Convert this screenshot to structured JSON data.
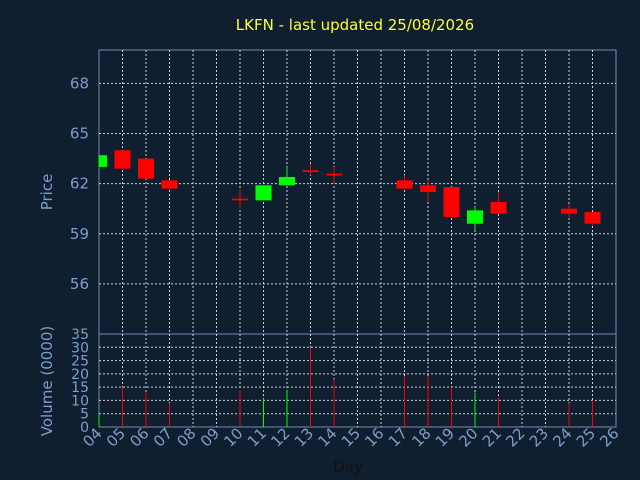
{
  "chart_data": {
    "type": "candlestick",
    "title": "LKFN - last updated 25/08/2026",
    "xlabel": "Day",
    "ylabel_price": "Price",
    "ylabel_volume": "Volume (0000)",
    "x_ticks": [
      "04",
      "05",
      "06",
      "07",
      "08",
      "09",
      "10",
      "11",
      "12",
      "13",
      "14",
      "15",
      "16",
      "17",
      "18",
      "19",
      "20",
      "21",
      "22",
      "23",
      "24",
      "25",
      "26"
    ],
    "price_ticks": [
      56,
      59,
      62,
      65,
      68
    ],
    "price_ylim": [
      53,
      70
    ],
    "volume_ticks": [
      0,
      5,
      10,
      15,
      20,
      25,
      30,
      35
    ],
    "volume_ylim": [
      0,
      35
    ],
    "up_color": "#00ff00",
    "down_color": "#ff0000",
    "grid": true,
    "candles": [
      {
        "day": 4,
        "open": 63.0,
        "high": 63.7,
        "low": 63.0,
        "close": 63.7,
        "volume": 5
      },
      {
        "day": 5,
        "open": 64.0,
        "high": 64.0,
        "low": 62.9,
        "close": 62.9,
        "volume": 15
      },
      {
        "day": 6,
        "open": 63.5,
        "high": 63.5,
        "low": 62.3,
        "close": 62.3,
        "volume": 13
      },
      {
        "day": 7,
        "open": 62.2,
        "high": 62.2,
        "low": 61.7,
        "close": 61.7,
        "volume": 9
      },
      {
        "day": 10,
        "open": 61.1,
        "high": 61.7,
        "low": 60.5,
        "close": 61.0,
        "volume": 14
      },
      {
        "day": 11,
        "open": 61.0,
        "high": 61.9,
        "low": 61.0,
        "close": 61.9,
        "volume": 11
      },
      {
        "day": 12,
        "open": 61.9,
        "high": 63.0,
        "low": 61.9,
        "close": 62.4,
        "volume": 14
      },
      {
        "day": 13,
        "open": 62.8,
        "high": 63.2,
        "low": 62.5,
        "close": 62.7,
        "volume": 30
      },
      {
        "day": 14,
        "open": 62.6,
        "high": 63.0,
        "low": 62.0,
        "close": 62.5,
        "volume": 18
      },
      {
        "day": 17,
        "open": 62.2,
        "high": 62.5,
        "low": 61.7,
        "close": 61.7,
        "volume": 19
      },
      {
        "day": 18,
        "open": 61.9,
        "high": 62.2,
        "low": 60.9,
        "close": 61.5,
        "volume": 19
      },
      {
        "day": 19,
        "open": 61.8,
        "high": 61.8,
        "low": 60.0,
        "close": 60.0,
        "volume": 15
      },
      {
        "day": 20,
        "open": 59.6,
        "high": 60.6,
        "low": 59.2,
        "close": 60.4,
        "volume": 13
      },
      {
        "day": 21,
        "open": 60.9,
        "high": 61.5,
        "low": 60.2,
        "close": 60.2,
        "volume": 11
      },
      {
        "day": 24,
        "open": 60.5,
        "high": 60.8,
        "low": 60.0,
        "close": 60.2,
        "volume": 9
      },
      {
        "day": 25,
        "open": 60.3,
        "high": 60.3,
        "low": 59.5,
        "close": 59.6,
        "volume": 10
      }
    ]
  }
}
